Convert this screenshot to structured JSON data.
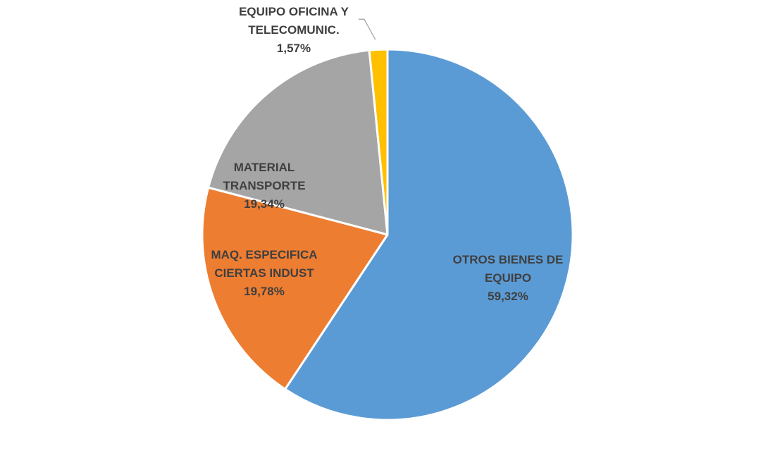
{
  "chart_data": {
    "type": "pie",
    "title": "",
    "slices": [
      {
        "name": "OTROS BIENES DE EQUIPO",
        "label_lines": [
          "OTROS BIENES DE",
          "EQUIPO"
        ],
        "value": 59.32,
        "value_label": "59,32%",
        "color": "#5b9bd5"
      },
      {
        "name": "MAQ. ESPECIFICA CIERTAS INDUST",
        "label_lines": [
          "MAQ. ESPECIFICA",
          "CIERTAS INDUST"
        ],
        "value": 19.78,
        "value_label": "19,78%",
        "color": "#ed7d31"
      },
      {
        "name": "MATERIAL TRANSPORTE",
        "label_lines": [
          "MATERIAL",
          "TRANSPORTE"
        ],
        "value": 19.34,
        "value_label": "19,34%",
        "color": "#a5a5a5"
      },
      {
        "name": "EQUIPO OFICINA Y TELECOMUNIC.",
        "label_lines": [
          "EQUIPO OFICINA Y",
          "TELECOMUNIC."
        ],
        "value": 1.57,
        "value_label": "1,57%",
        "color": "#ffc000"
      }
    ],
    "start_angle": "12 o'clock",
    "direction": "clockwise",
    "legend": "none",
    "label_color": "#3f3f3f"
  }
}
